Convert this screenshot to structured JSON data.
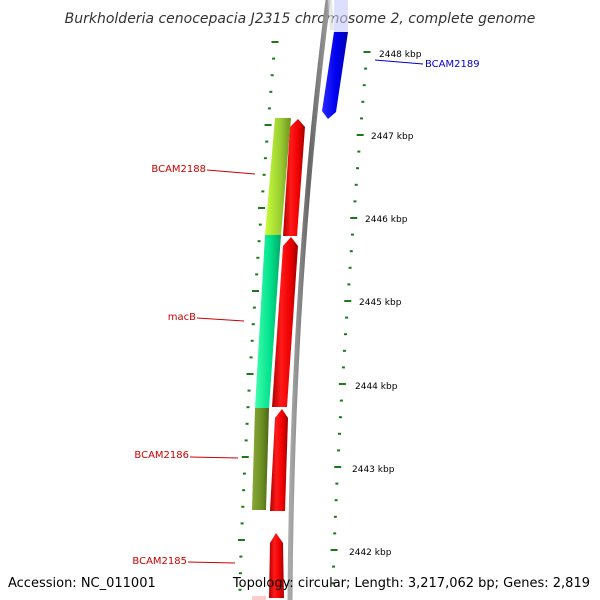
{
  "title": "Burkholderia cenocepacia J2315 chromosome 2, complete genome",
  "footer": {
    "accession": "Accession: NC_011001",
    "summary": "Topology: circular; Length: 3,217,062 bp; Genes: 2,819"
  },
  "ruler": {
    "unit": "kbp",
    "labels": [
      "2448 kbp",
      "2447 kbp",
      "2446 kbp",
      "2445 kbp",
      "2444 kbp",
      "2443 kbp",
      "2442 kbp"
    ]
  },
  "genes": [
    {
      "name": "BCAM2189",
      "strand": "forward",
      "color": "#0000ee"
    },
    {
      "name": "BCAM2188",
      "strand": "reverse",
      "color": "#ee0000",
      "cog_color": "#9acd32"
    },
    {
      "name": "macB",
      "strand": "reverse",
      "color": "#ee0000",
      "cog_color": "#00e08a"
    },
    {
      "name": "BCAM2186",
      "strand": "reverse",
      "color": "#ee0000",
      "cog_color": "#6b8e23"
    },
    {
      "name": "BCAM2185",
      "strand": "reverse",
      "color": "#ee0000"
    }
  ],
  "colors": {
    "backbone": "#888888",
    "ticks": "#1a7a1a",
    "forward_label": "#0000cc",
    "reverse_label": "#cc0000"
  }
}
